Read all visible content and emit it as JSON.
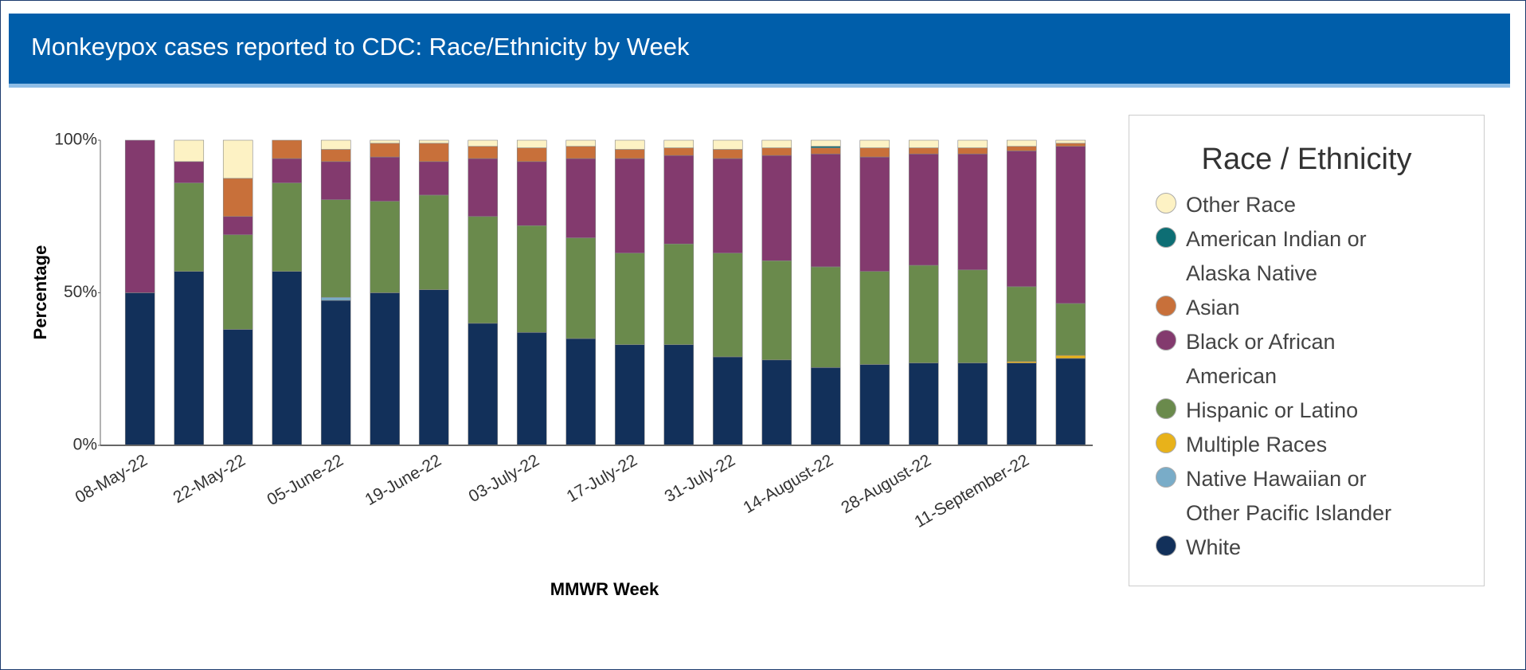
{
  "chart_data": {
    "type": "stacked_bar",
    "title": "Monkeypox cases reported to CDC: Race/Ethnicity by Week",
    "x_label": "MMWR Week",
    "y_label": "Percentage",
    "legend_title": "Race / Ethnicity",
    "categories": [
      "08-May-22",
      null,
      "22-May-22",
      null,
      "05-June-22",
      null,
      "19-June-22",
      null,
      "03-July-22",
      null,
      "17-July-22",
      null,
      "31-July-22",
      null,
      "14-August-22",
      null,
      "28-August-22",
      null,
      "11-September-22",
      null
    ],
    "ylim": [
      0,
      100
    ],
    "yticks": [
      {
        "value": 0,
        "label": "0%"
      },
      {
        "value": 50,
        "label": "50%"
      },
      {
        "value": 100,
        "label": "100%"
      }
    ],
    "series": [
      {
        "name": "White",
        "color": "#12305a",
        "values": [
          50,
          57,
          38,
          57,
          47.5,
          50,
          51,
          40,
          37,
          35,
          33,
          33,
          29,
          28,
          25.5,
          26.5,
          27,
          27,
          27,
          28.5
        ]
      },
      {
        "name": "Native Hawaiian or Other Pacific Islander",
        "color": "#79acc8",
        "values": [
          0,
          0,
          0,
          0,
          1,
          0,
          0,
          0,
          0,
          0,
          0,
          0,
          0,
          0,
          0,
          0,
          0,
          0,
          0,
          0
        ]
      },
      {
        "name": "Multiple Races",
        "color": "#e8b21a",
        "values": [
          0,
          0,
          0,
          0,
          0,
          0,
          0,
          0,
          0,
          0,
          0,
          0,
          0,
          0,
          0,
          0,
          0,
          0,
          0.5,
          1
        ]
      },
      {
        "name": "Hispanic or Latino",
        "color": "#6a8a4c",
        "values": [
          0,
          29,
          31,
          29,
          32,
          30,
          31,
          35,
          35,
          33,
          30,
          33,
          34,
          32.5,
          33,
          30.5,
          32,
          30.5,
          24.5,
          17
        ]
      },
      {
        "name": "Black or African American",
        "color": "#833a6e",
        "values": [
          50,
          7,
          6,
          8,
          12.5,
          14.5,
          11,
          19,
          21,
          26,
          31,
          29,
          31,
          34.5,
          37,
          37.5,
          36.5,
          38,
          44.5,
          51.5
        ]
      },
      {
        "name": "Asian",
        "color": "#c8703a",
        "values": [
          0,
          0,
          12.5,
          6,
          4,
          4.5,
          6,
          4,
          4.5,
          4,
          3,
          2.5,
          3,
          2.5,
          2,
          3,
          2,
          2,
          1.5,
          1
        ]
      },
      {
        "name": "American Indian or Alaska Native",
        "color": "#0d6e74",
        "values": [
          0,
          0,
          0,
          0,
          0,
          0,
          0,
          0,
          0,
          0,
          0,
          0,
          0,
          0,
          0.5,
          0,
          0,
          0,
          0,
          0
        ]
      },
      {
        "name": "Other Race",
        "color": "#fdf2c4",
        "values": [
          0,
          7,
          12.5,
          0,
          3,
          1,
          1,
          2,
          2.5,
          2,
          3,
          2.5,
          3,
          2.5,
          2,
          2.5,
          2.5,
          2.5,
          2,
          1
        ]
      }
    ]
  }
}
